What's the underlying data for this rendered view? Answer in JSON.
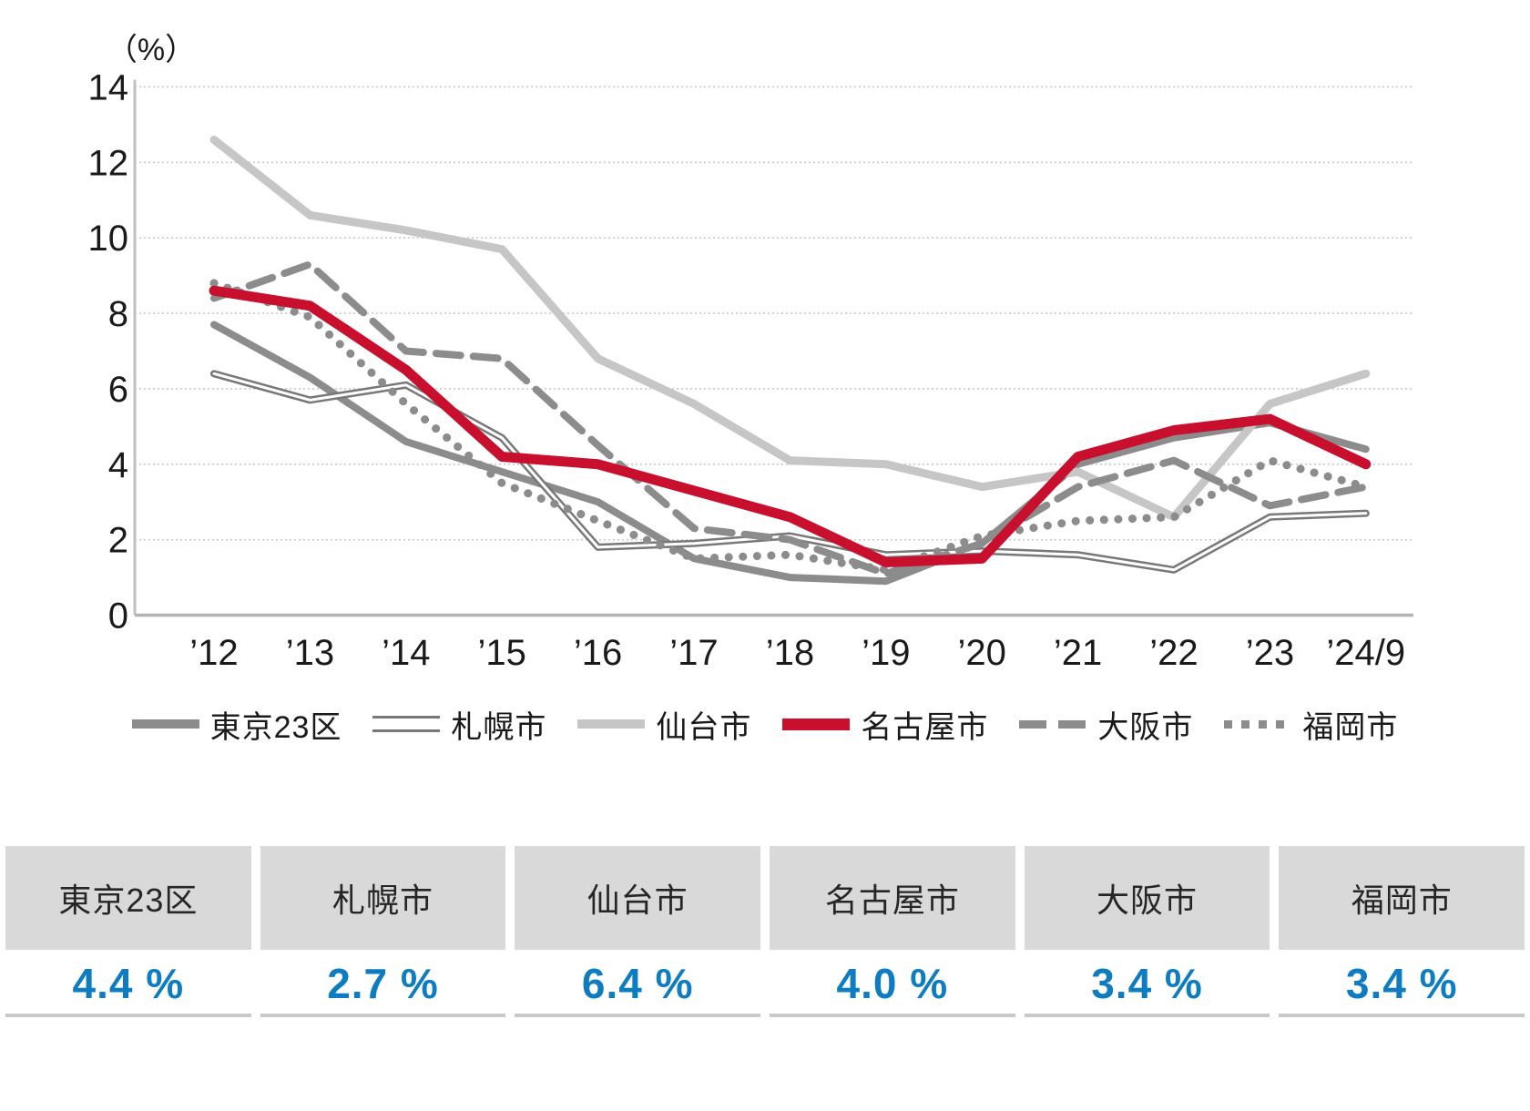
{
  "chart_data": {
    "type": "line",
    "title": "",
    "unit_label": "（%）",
    "xlabel": "",
    "ylabel": "%",
    "ylim": [
      0,
      14
    ],
    "y_ticks": [
      0,
      2,
      4,
      6,
      8,
      10,
      12,
      14
    ],
    "grid": "horizontal-dotted",
    "legend_position": "bottom",
    "categories": [
      "’12",
      "’13",
      "’14",
      "’15",
      "’16",
      "’17",
      "’18",
      "’19",
      "’20",
      "’21",
      "’22",
      "’23",
      "’24/9"
    ],
    "series": [
      {
        "name": "東京23区",
        "style": "solid",
        "color": "#8c8c8c",
        "width": 8,
        "values": [
          7.7,
          6.3,
          4.6,
          3.8,
          3.0,
          1.5,
          1.0,
          0.9,
          1.9,
          4.0,
          4.7,
          5.1,
          4.4
        ]
      },
      {
        "name": "札幌市",
        "style": "double",
        "color": "#787878",
        "width": 8,
        "values": [
          6.4,
          5.7,
          6.1,
          4.7,
          1.8,
          1.9,
          2.1,
          1.6,
          1.7,
          1.6,
          1.2,
          2.6,
          2.7
        ]
      },
      {
        "name": "仙台市",
        "style": "solid",
        "color": "#c6c6c6",
        "width": 9,
        "values": [
          12.6,
          10.6,
          10.2,
          9.7,
          6.8,
          5.6,
          4.1,
          4.0,
          3.4,
          3.8,
          2.6,
          5.6,
          6.4
        ]
      },
      {
        "name": "大阪市",
        "style": "dashed",
        "color": "#8c8c8c",
        "width": 8,
        "values": [
          8.4,
          9.3,
          7.0,
          6.8,
          4.5,
          2.3,
          2.0,
          1.1,
          1.9,
          3.4,
          4.1,
          2.9,
          3.4
        ]
      },
      {
        "name": "福岡市",
        "style": "dotted",
        "color": "#8c8c8c",
        "width": 9,
        "values": [
          8.8,
          7.9,
          5.6,
          3.5,
          2.5,
          1.5,
          1.6,
          1.2,
          2.1,
          2.5,
          2.6,
          4.1,
          3.4
        ]
      },
      {
        "name": "名古屋市",
        "style": "solid",
        "color": "#c8102e",
        "width": 11,
        "values": [
          8.6,
          8.2,
          6.5,
          4.2,
          4.0,
          3.3,
          2.6,
          1.4,
          1.5,
          4.2,
          4.9,
          5.2,
          4.0
        ]
      }
    ],
    "legend_order": [
      "東京23区",
      "札幌市",
      "仙台市",
      "名古屋市",
      "大阪市",
      "福岡市"
    ]
  },
  "summary_table": {
    "header_bg": "#d9d9d9",
    "value_color": "#0e7cc1",
    "columns": [
      {
        "city": "東京23区",
        "value": "4.4 %"
      },
      {
        "city": "札幌市",
        "value": "2.7 %"
      },
      {
        "city": "仙台市",
        "value": "6.4 %"
      },
      {
        "city": "名古屋市",
        "value": "4.0 %"
      },
      {
        "city": "大阪市",
        "value": "3.4 %"
      },
      {
        "city": "福岡市",
        "value": "3.4 %"
      }
    ]
  }
}
